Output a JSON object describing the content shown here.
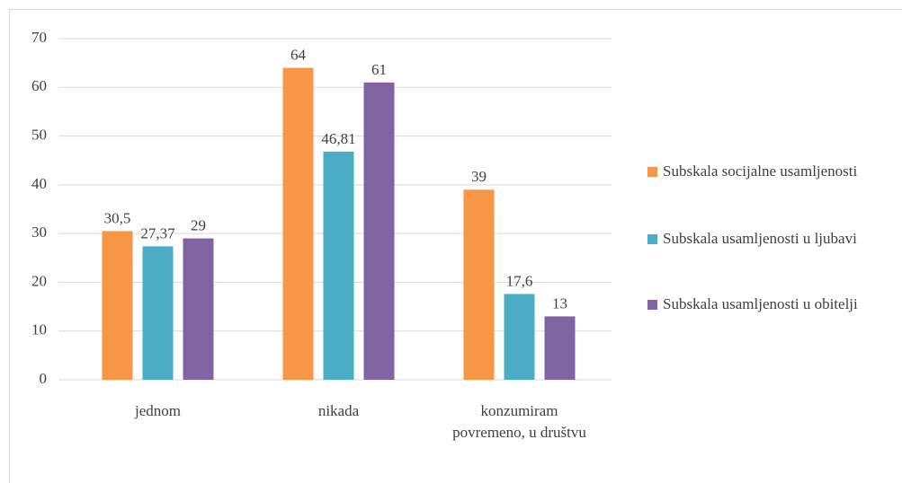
{
  "chart_data": {
    "type": "bar",
    "categories": [
      "jednom",
      "nikada",
      "konzumiram povremeno, u društvu"
    ],
    "series": [
      {
        "name": "Subskala socijalne usamljenosti",
        "color": "#f79646",
        "values": [
          30.5,
          64,
          39
        ],
        "value_labels": [
          "30,5",
          "64",
          "39"
        ]
      },
      {
        "name": "Subskala usamljenosti u ljubavi",
        "color": "#4bacc6",
        "values": [
          27.37,
          46.81,
          17.6
        ],
        "value_labels": [
          "27,37",
          "46,81",
          "17,6"
        ]
      },
      {
        "name": "Subskala usamljenosti u obitelji",
        "color": "#8064a2",
        "values": [
          29,
          61,
          13
        ],
        "value_labels": [
          "29",
          "61",
          "13"
        ]
      }
    ],
    "ylim": [
      0,
      70
    ],
    "yticks": [
      0,
      10,
      20,
      30,
      40,
      50,
      60,
      70
    ],
    "grid": true,
    "legend": "right"
  }
}
